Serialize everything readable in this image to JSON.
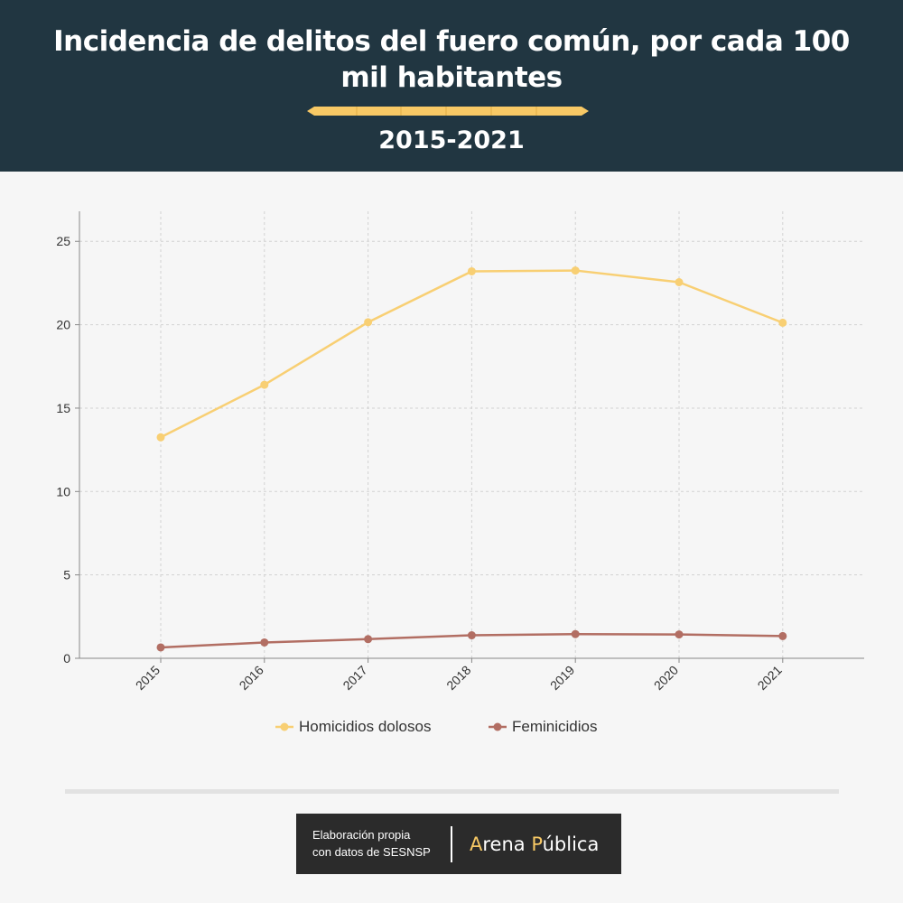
{
  "header": {
    "title": "Incidencia de delitos del fuero común, por cada 100 mil habitantes",
    "subtitle": "2015-2021"
  },
  "colors": {
    "header_bg": "#213641",
    "homicidios": "#f8cf73",
    "feminicidios": "#b26e63",
    "pencil_accent": "#f8c965"
  },
  "chart_data": {
    "type": "line",
    "x": [
      "2015",
      "2016",
      "2017",
      "2018",
      "2019",
      "2020",
      "2021"
    ],
    "series": [
      {
        "name": "Homicidios dolosos",
        "values": [
          13.25,
          16.4,
          20.15,
          23.2,
          23.25,
          22.55,
          20.12
        ]
      },
      {
        "name": "Feminicidios",
        "values": [
          0.65,
          0.95,
          1.15,
          1.38,
          1.45,
          1.43,
          1.33
        ]
      }
    ],
    "yticks": [
      "0",
      "5",
      "10",
      "15",
      "20",
      "25"
    ],
    "ylim": [
      0,
      26.8
    ],
    "grid": true,
    "legend_position": "bottom"
  },
  "footer": {
    "credit_line1": "Elaboración propia",
    "credit_line2": "con datos de SESNSP",
    "brand_initial1": "A",
    "brand_rest1": "rena ",
    "brand_initial2": "P",
    "brand_rest2": "ública"
  }
}
